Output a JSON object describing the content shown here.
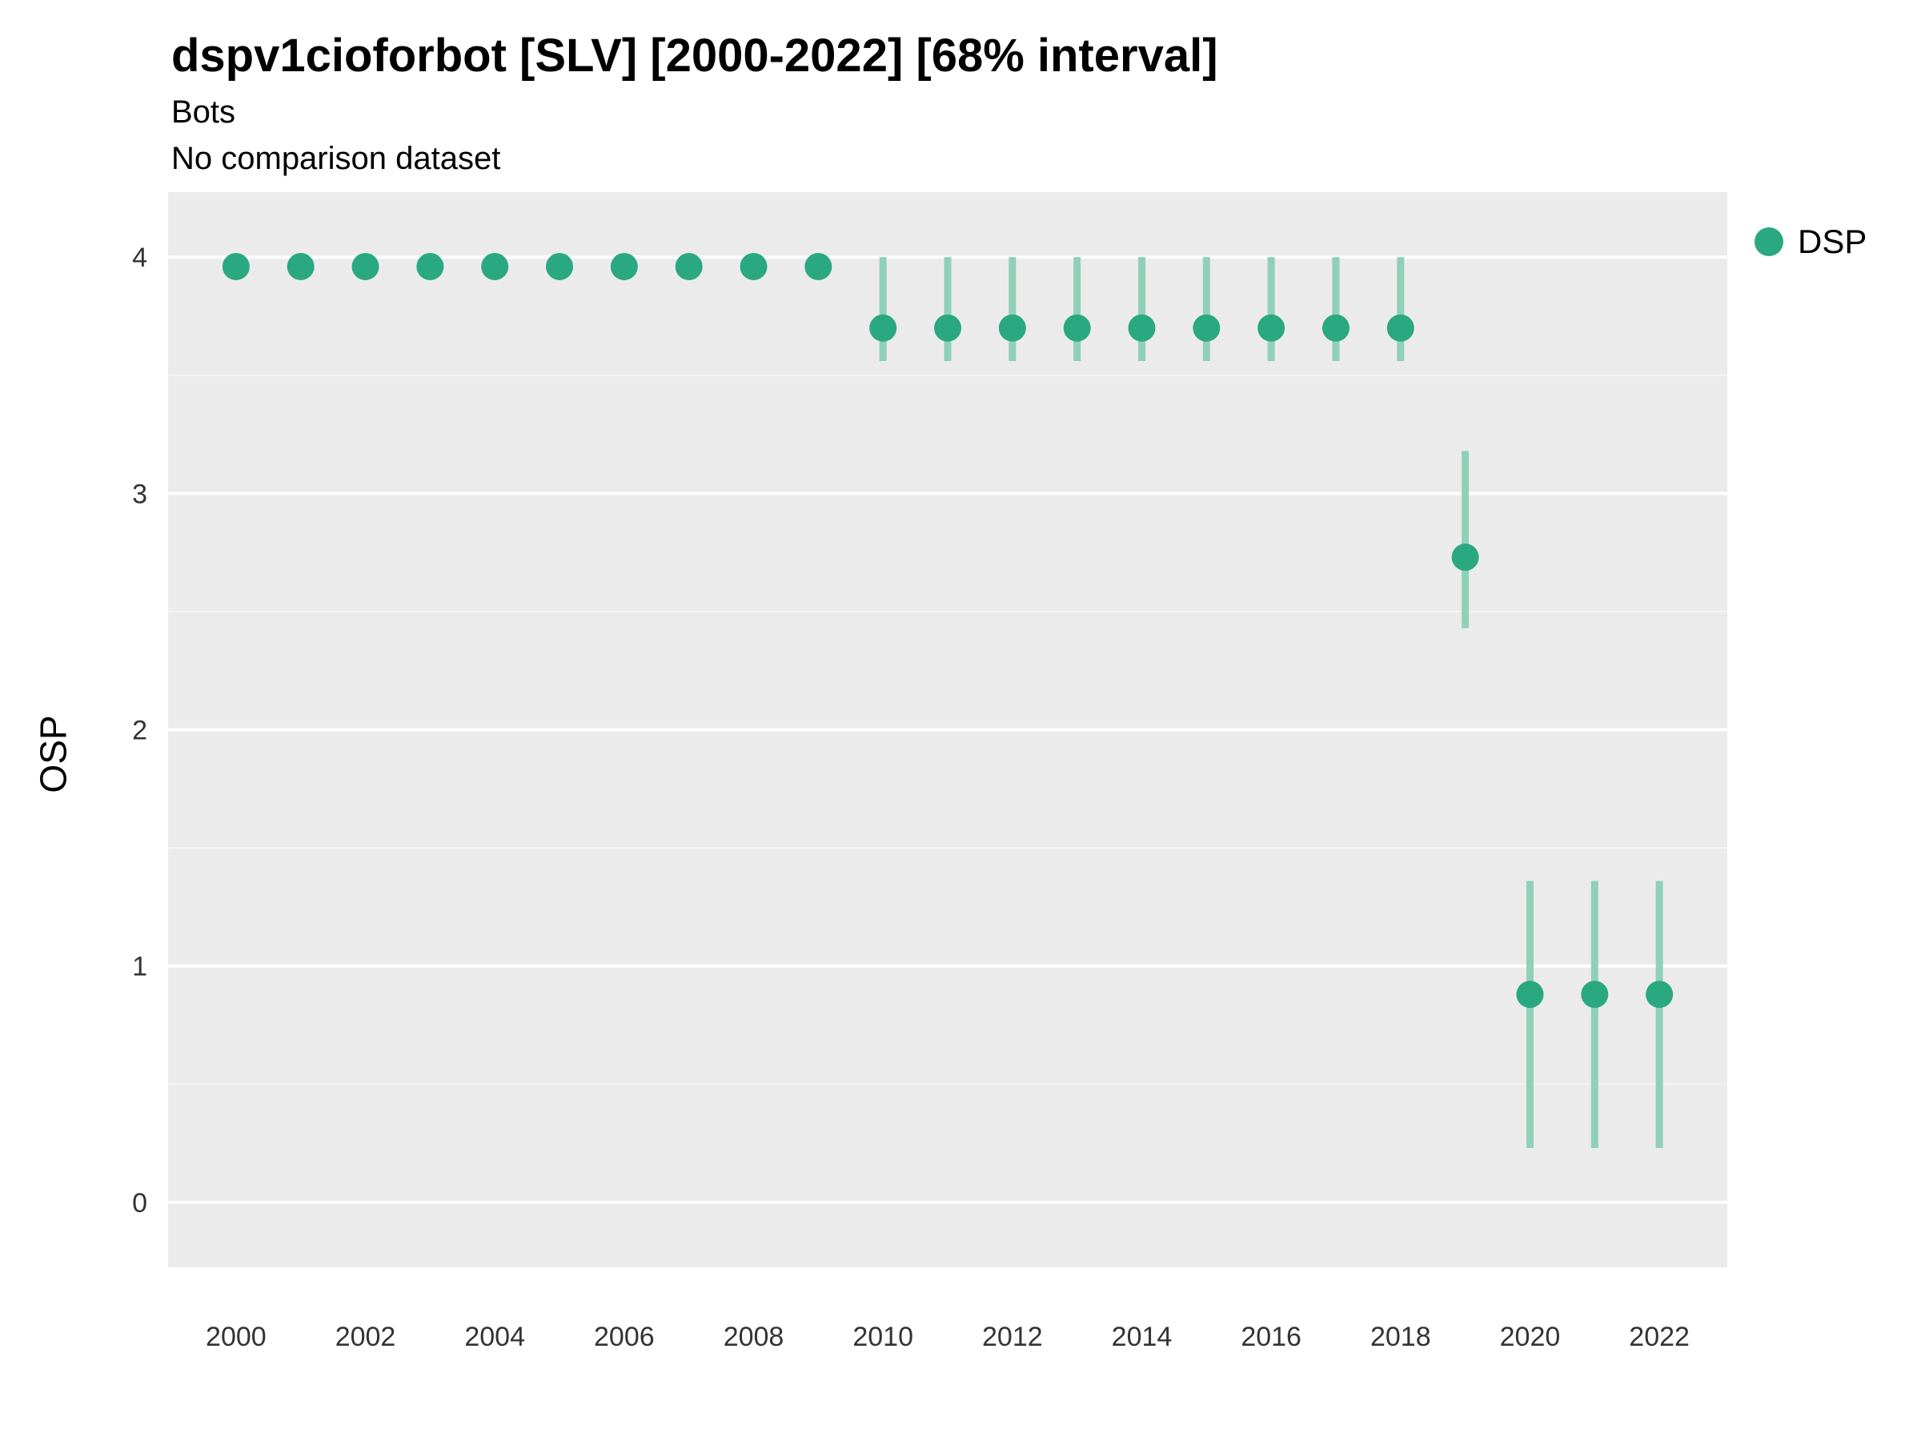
{
  "header": {
    "title": "dspv1cioforbot [SLV] [2000-2022] [68% interval]",
    "subtitle1": "Bots",
    "subtitle2": "No comparison dataset"
  },
  "axes": {
    "ylabel": "OSP"
  },
  "legend": {
    "label": "DSP"
  },
  "chart_data": {
    "type": "scatter",
    "subtype": "pointrange",
    "title": "dspv1cioforbot [SLV] [2000-2022] [68% interval]",
    "subtitle": [
      "Bots",
      "No comparison dataset"
    ],
    "xlabel": "",
    "ylabel": "OSP",
    "x": [
      2000,
      2001,
      2002,
      2003,
      2004,
      2005,
      2006,
      2007,
      2008,
      2009,
      2010,
      2011,
      2012,
      2013,
      2014,
      2015,
      2016,
      2017,
      2018,
      2019,
      2020,
      2021,
      2022
    ],
    "series": [
      {
        "name": "DSP",
        "values": [
          3.96,
          3.96,
          3.96,
          3.96,
          3.96,
          3.96,
          3.96,
          3.96,
          3.96,
          3.96,
          3.7,
          3.7,
          3.7,
          3.7,
          3.7,
          3.7,
          3.7,
          3.7,
          3.7,
          2.73,
          0.88,
          0.88,
          0.88
        ],
        "lower": [
          3.93,
          3.93,
          3.93,
          3.93,
          3.93,
          3.93,
          3.93,
          3.93,
          3.93,
          3.93,
          3.56,
          3.56,
          3.56,
          3.56,
          3.56,
          3.56,
          3.56,
          3.56,
          3.56,
          2.43,
          0.23,
          0.23,
          0.23
        ],
        "upper": [
          3.99,
          3.99,
          3.99,
          3.99,
          3.99,
          3.99,
          3.99,
          3.99,
          3.99,
          3.99,
          4.0,
          4.0,
          4.0,
          4.0,
          4.0,
          4.0,
          4.0,
          4.0,
          4.0,
          3.18,
          1.36,
          1.36,
          1.36
        ]
      }
    ],
    "xticks": [
      2000,
      2002,
      2004,
      2006,
      2008,
      2010,
      2012,
      2014,
      2016,
      2018,
      2020,
      2022
    ],
    "yticks": [
      0,
      1,
      2,
      3,
      4
    ],
    "yticks_minor": [
      0.5,
      1.5,
      2.5,
      3.5
    ],
    "xlim": [
      1998.95,
      2023.05
    ],
    "ylim": [
      -0.275,
      4.275
    ],
    "legend_position": "right",
    "grid": true,
    "colors": {
      "point": "#2aa87f",
      "interval": "#8fd0b8",
      "plot_bg": "#ebebeb",
      "grid_major": "#ffffff",
      "grid_minor": "#f4f4f4",
      "tick_text": "#333333"
    }
  }
}
